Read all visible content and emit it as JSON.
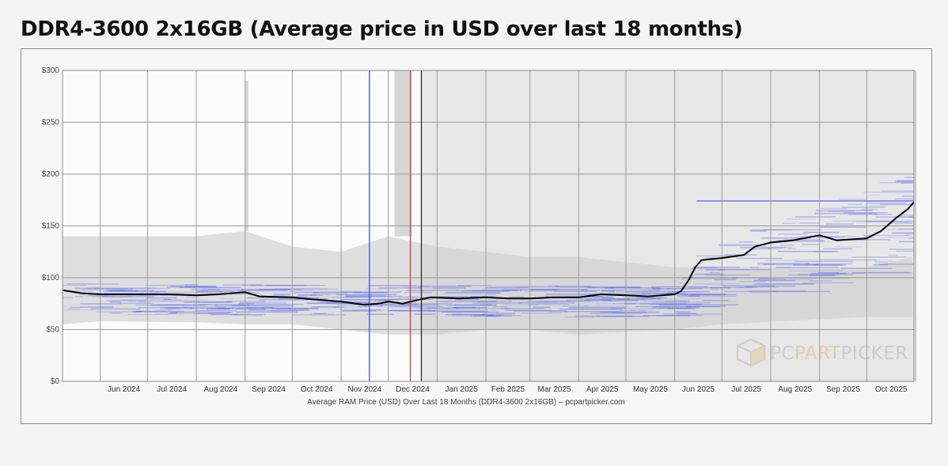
{
  "page": {
    "title": "DDR4-3600 2x16GB (Average price in USD over last 18 months)"
  },
  "chart_data": {
    "type": "line",
    "title": "DDR4-3600 2x16GB (Average price in USD over last 18 months)",
    "caption": "Average RAM Price (USD) Over Last 18 Months (DDR4-3600 2x16GB) – pcpartpicker.com",
    "xlabel": "",
    "ylabel": "",
    "y_ticks": [
      "$0",
      "$50",
      "$100",
      "$150",
      "$200",
      "$250",
      "$300"
    ],
    "y_tick_values": [
      0,
      50,
      100,
      150,
      200,
      250,
      300
    ],
    "ylim": [
      0,
      300
    ],
    "x_tick_labels": [
      "Jun 2024",
      "Jul 2024",
      "Aug 2024",
      "Sep 2024",
      "Oct 2024",
      "Nov 2024",
      "Dec 2024",
      "Jan 2025",
      "Feb 2025",
      "Mar 2025",
      "Apr 2025",
      "May 2025",
      "Jun 2025",
      "Jul 2025",
      "Aug 2025",
      "Sep 2025",
      "Oct 2025"
    ],
    "xlim": [
      "2024-05-08",
      "2025-10-31"
    ],
    "grid": true,
    "watermark": {
      "text_part1": "PC",
      "text_part2": "PART",
      "text_part3": "PICKER"
    },
    "markers": [
      {
        "date": "2024-11-19",
        "color": "#3344dd"
      },
      {
        "date": "2024-12-15",
        "color": "#cc3333"
      },
      {
        "date": "2024-12-22",
        "color": "#222222"
      }
    ],
    "series": [
      {
        "color": "#000000",
        "points": [
          [
            "2024-05-08",
            88
          ],
          [
            "2024-05-20",
            85
          ],
          [
            "2024-06-01",
            84
          ],
          [
            "2024-06-15",
            84
          ],
          [
            "2024-07-01",
            84
          ],
          [
            "2024-07-15",
            84
          ],
          [
            "2024-08-01",
            83
          ],
          [
            "2024-08-15",
            84
          ],
          [
            "2024-09-01",
            86
          ],
          [
            "2024-09-10",
            82
          ],
          [
            "2024-10-01",
            81
          ],
          [
            "2024-10-15",
            79
          ],
          [
            "2024-11-01",
            77
          ],
          [
            "2024-11-15",
            74
          ],
          [
            "2024-11-25",
            75
          ],
          [
            "2024-12-01",
            77
          ],
          [
            "2024-12-10",
            75
          ],
          [
            "2024-12-18",
            78
          ],
          [
            "2024-12-28",
            81
          ],
          [
            "2025-01-15",
            80
          ],
          [
            "2025-02-01",
            81
          ],
          [
            "2025-02-15",
            80
          ],
          [
            "2025-03-01",
            80
          ],
          [
            "2025-03-15",
            81
          ],
          [
            "2025-04-01",
            81
          ],
          [
            "2025-04-15",
            84
          ],
          [
            "2025-05-01",
            83
          ],
          [
            "2025-05-15",
            82
          ],
          [
            "2025-06-01",
            84
          ],
          [
            "2025-06-05",
            87
          ],
          [
            "2025-06-10",
            98
          ],
          [
            "2025-06-14",
            110
          ],
          [
            "2025-06-18",
            117
          ],
          [
            "2025-07-01",
            119
          ],
          [
            "2025-07-15",
            122
          ],
          [
            "2025-07-22",
            130
          ],
          [
            "2025-08-01",
            134
          ],
          [
            "2025-08-15",
            136
          ],
          [
            "2025-09-01",
            141
          ],
          [
            "2025-09-12",
            136
          ],
          [
            "2025-10-01",
            138
          ],
          [
            "2025-10-10",
            145
          ],
          [
            "2025-10-20",
            158
          ],
          [
            "2025-10-27",
            166
          ],
          [
            "2025-10-31",
            173
          ]
        ]
      }
    ],
    "price_range": {
      "color": "#dedede",
      "points": [
        [
          "2024-05-08",
          140,
          55
        ],
        [
          "2024-06-01",
          140,
          58
        ],
        [
          "2024-08-01",
          140,
          57
        ],
        [
          "2024-09-01",
          145,
          55
        ],
        [
          "2024-10-01",
          130,
          55
        ],
        [
          "2024-11-01",
          125,
          50
        ],
        [
          "2024-12-01",
          140,
          45
        ],
        [
          "2025-01-01",
          130,
          45
        ],
        [
          "2025-02-01",
          125,
          50
        ],
        [
          "2025-03-01",
          120,
          50
        ],
        [
          "2025-04-01",
          120,
          45
        ],
        [
          "2025-05-01",
          115,
          48
        ],
        [
          "2025-06-01",
          110,
          50
        ],
        [
          "2025-07-01",
          110,
          55
        ],
        [
          "2025-09-01",
          110,
          60
        ],
        [
          "2025-10-01",
          110,
          62
        ],
        [
          "2025-10-31",
          120,
          62
        ]
      ]
    },
    "listing_band": {
      "color": "#4455ee",
      "points": [
        [
          "2024-05-08",
          95,
          65
        ],
        [
          "2024-12-01",
          93,
          62
        ],
        [
          "2025-06-01",
          92,
          62
        ],
        [
          "2025-06-15",
          125,
          70
        ],
        [
          "2025-09-01",
          175,
          95
        ],
        [
          "2025-10-31",
          215,
          120
        ]
      ]
    }
  }
}
